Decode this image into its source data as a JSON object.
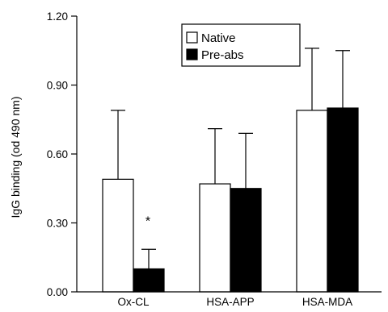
{
  "chart_data": {
    "type": "bar",
    "title": "",
    "xlabel": "",
    "ylabel": "IgG binding (od 490 nm)",
    "ylim": [
      0,
      1.2
    ],
    "yticks": [
      "0.00",
      "0.30",
      "0.60",
      "0.90",
      "1.20"
    ],
    "categories": [
      "Ox-CL",
      "HSA-APP",
      "HSA-MDA"
    ],
    "series": [
      {
        "name": "Native",
        "values": [
          0.49,
          0.47,
          0.79
        ],
        "error": [
          0.3,
          0.24,
          0.27
        ],
        "color": "#ffffff"
      },
      {
        "name": "Pre-abs",
        "values": [
          0.1,
          0.45,
          0.8
        ],
        "error": [
          0.085,
          0.24,
          0.25
        ],
        "color": "#000000"
      }
    ],
    "legend_position": "top-center",
    "grid": false,
    "annotations": [
      {
        "text": "*",
        "category": "Ox-CL",
        "series": "Pre-abs"
      }
    ]
  }
}
